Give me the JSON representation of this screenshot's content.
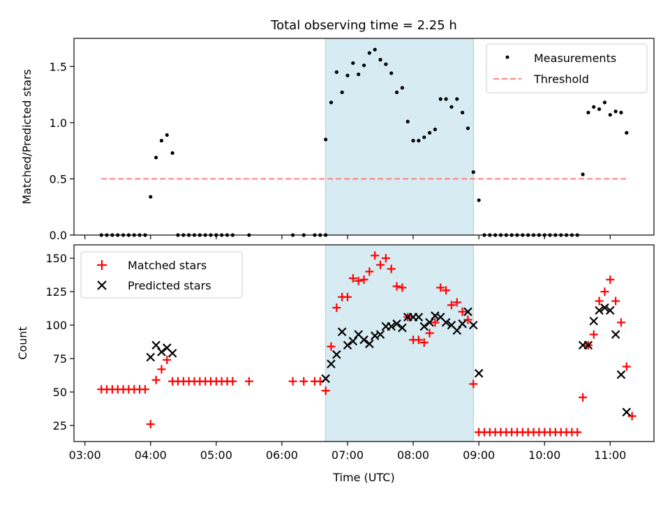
{
  "chart_data": [
    {
      "type": "scatter",
      "title": "Total observing time = 2.25 h",
      "xlabel": "",
      "ylabel": "Matched/Predicted stars",
      "xlim": [
        "02:50",
        "11:40"
      ],
      "ylim": [
        0,
        1.75
      ],
      "yticks": [
        "0.0",
        "0.5",
        "1.0",
        "1.5"
      ],
      "legend_position": "upper-right",
      "shaded_interval": [
        "06:40",
        "08:55"
      ],
      "series": [
        {
          "name": "Measurements",
          "marker": "dot",
          "color": "#000000",
          "points": [
            [
              "03:15",
              0
            ],
            [
              "03:20",
              0
            ],
            [
              "03:25",
              0
            ],
            [
              "03:30",
              0
            ],
            [
              "03:35",
              0
            ],
            [
              "03:40",
              0
            ],
            [
              "03:45",
              0
            ],
            [
              "03:50",
              0
            ],
            [
              "03:55",
              0
            ],
            [
              "04:00",
              0.34
            ],
            [
              "04:05",
              0.69
            ],
            [
              "04:10",
              0.84
            ],
            [
              "04:15",
              0.89
            ],
            [
              "04:20",
              0.73
            ],
            [
              "04:25",
              0
            ],
            [
              "04:30",
              0
            ],
            [
              "04:35",
              0
            ],
            [
              "04:40",
              0
            ],
            [
              "04:45",
              0
            ],
            [
              "04:50",
              0
            ],
            [
              "04:55",
              0
            ],
            [
              "05:00",
              0
            ],
            [
              "05:05",
              0
            ],
            [
              "05:10",
              0
            ],
            [
              "05:15",
              0
            ],
            [
              "05:30",
              0
            ],
            [
              "06:10",
              0
            ],
            [
              "06:20",
              0
            ],
            [
              "06:30",
              0
            ],
            [
              "06:35",
              0
            ],
            [
              "06:40",
              0
            ],
            [
              "06:40",
              0.85
            ],
            [
              "06:45",
              1.18
            ],
            [
              "06:50",
              1.45
            ],
            [
              "06:55",
              1.27
            ],
            [
              "07:00",
              1.42
            ],
            [
              "07:05",
              1.53
            ],
            [
              "07:10",
              1.43
            ],
            [
              "07:15",
              1.51
            ],
            [
              "07:20",
              1.62
            ],
            [
              "07:25",
              1.65
            ],
            [
              "07:30",
              1.56
            ],
            [
              "07:35",
              1.52
            ],
            [
              "07:40",
              1.44
            ],
            [
              "07:45",
              1.27
            ],
            [
              "07:50",
              1.31
            ],
            [
              "07:55",
              1.01
            ],
            [
              "08:00",
              0.84
            ],
            [
              "08:05",
              0.84
            ],
            [
              "08:10",
              0.87
            ],
            [
              "08:15",
              0.91
            ],
            [
              "08:20",
              0.94
            ],
            [
              "08:25",
              1.21
            ],
            [
              "08:30",
              1.21
            ],
            [
              "08:35",
              1.14
            ],
            [
              "08:40",
              1.21
            ],
            [
              "08:45",
              1.09
            ],
            [
              "08:50",
              0.95
            ],
            [
              "08:55",
              0.56
            ],
            [
              "09:00",
              0.31
            ],
            [
              "09:05",
              0
            ],
            [
              "09:10",
              0
            ],
            [
              "09:15",
              0
            ],
            [
              "09:20",
              0
            ],
            [
              "09:25",
              0
            ],
            [
              "09:30",
              0
            ],
            [
              "09:35",
              0
            ],
            [
              "09:40",
              0
            ],
            [
              "09:45",
              0
            ],
            [
              "09:50",
              0
            ],
            [
              "09:55",
              0
            ],
            [
              "10:00",
              0
            ],
            [
              "10:05",
              0
            ],
            [
              "10:10",
              0
            ],
            [
              "10:15",
              0
            ],
            [
              "10:20",
              0
            ],
            [
              "10:25",
              0
            ],
            [
              "10:30",
              0
            ],
            [
              "10:35",
              0.54
            ],
            [
              "10:40",
              1.09
            ],
            [
              "10:45",
              1.14
            ],
            [
              "10:50",
              1.12
            ],
            [
              "10:55",
              1.18
            ],
            [
              "11:00",
              1.07
            ],
            [
              "11:05",
              1.1
            ],
            [
              "11:10",
              1.09
            ],
            [
              "11:15",
              0.91
            ]
          ]
        },
        {
          "name": "Threshold",
          "marker": "dashed-line",
          "color": "#ff7f7f",
          "points": [
            [
              "03:15",
              0.5
            ],
            [
              "11:15",
              0.5
            ]
          ]
        }
      ]
    },
    {
      "type": "scatter",
      "title": "",
      "xlabel": "Time (UTC)",
      "ylabel": "Count",
      "xlim": [
        "02:50",
        "11:40"
      ],
      "ylim": [
        13,
        160
      ],
      "yticks": [
        "25",
        "50",
        "75",
        "100",
        "125",
        "150"
      ],
      "xticks": [
        "03:00",
        "04:00",
        "05:00",
        "06:00",
        "07:00",
        "08:00",
        "09:00",
        "10:00",
        "11:00"
      ],
      "legend_position": "upper-left",
      "shaded_interval": [
        "06:40",
        "08:55"
      ],
      "series": [
        {
          "name": "Matched stars",
          "marker": "plus",
          "color": "#ff0000",
          "points": [
            [
              "03:15",
              52
            ],
            [
              "03:20",
              52
            ],
            [
              "03:25",
              52
            ],
            [
              "03:30",
              52
            ],
            [
              "03:35",
              52
            ],
            [
              "03:40",
              52
            ],
            [
              "03:45",
              52
            ],
            [
              "03:50",
              52
            ],
            [
              "03:55",
              52
            ],
            [
              "04:00",
              26
            ],
            [
              "04:05",
              59
            ],
            [
              "04:10",
              67
            ],
            [
              "04:15",
              74
            ],
            [
              "04:20",
              58
            ],
            [
              "04:25",
              58
            ],
            [
              "04:30",
              58
            ],
            [
              "04:35",
              58
            ],
            [
              "04:40",
              58
            ],
            [
              "04:45",
              58
            ],
            [
              "04:50",
              58
            ],
            [
              "04:55",
              58
            ],
            [
              "05:00",
              58
            ],
            [
              "05:05",
              58
            ],
            [
              "05:10",
              58
            ],
            [
              "05:15",
              58
            ],
            [
              "05:30",
              58
            ],
            [
              "06:10",
              58
            ],
            [
              "06:20",
              58
            ],
            [
              "06:30",
              58
            ],
            [
              "06:35",
              58
            ],
            [
              "06:40",
              51
            ],
            [
              "06:45",
              84
            ],
            [
              "06:50",
              113
            ],
            [
              "06:55",
              121
            ],
            [
              "07:00",
              121
            ],
            [
              "07:05",
              135
            ],
            [
              "07:10",
              133
            ],
            [
              "07:15",
              134
            ],
            [
              "07:20",
              140
            ],
            [
              "07:25",
              152
            ],
            [
              "07:30",
              145
            ],
            [
              "07:35",
              150
            ],
            [
              "07:40",
              142
            ],
            [
              "07:45",
              129
            ],
            [
              "07:50",
              128
            ],
            [
              "07:55",
              106
            ],
            [
              "08:00",
              89
            ],
            [
              "08:05",
              89
            ],
            [
              "08:10",
              87
            ],
            [
              "08:15",
              94
            ],
            [
              "08:20",
              102
            ],
            [
              "08:25",
              128
            ],
            [
              "08:30",
              126
            ],
            [
              "08:35",
              115
            ],
            [
              "08:40",
              117
            ],
            [
              "08:45",
              110
            ],
            [
              "08:50",
              104
            ],
            [
              "08:55",
              56
            ],
            [
              "09:00",
              20
            ],
            [
              "09:05",
              20
            ],
            [
              "09:10",
              20
            ],
            [
              "09:15",
              20
            ],
            [
              "09:20",
              20
            ],
            [
              "09:25",
              20
            ],
            [
              "09:30",
              20
            ],
            [
              "09:35",
              20
            ],
            [
              "09:40",
              20
            ],
            [
              "09:45",
              20
            ],
            [
              "09:50",
              20
            ],
            [
              "09:55",
              20
            ],
            [
              "10:00",
              20
            ],
            [
              "10:05",
              20
            ],
            [
              "10:10",
              20
            ],
            [
              "10:15",
              20
            ],
            [
              "10:20",
              20
            ],
            [
              "10:25",
              20
            ],
            [
              "10:30",
              20
            ],
            [
              "10:35",
              46
            ],
            [
              "10:40",
              85
            ],
            [
              "10:45",
              93
            ],
            [
              "10:50",
              118
            ],
            [
              "10:55",
              125
            ],
            [
              "11:00",
              134
            ],
            [
              "11:05",
              118
            ],
            [
              "11:10",
              102
            ],
            [
              "11:15",
              69
            ],
            [
              "11:20",
              32
            ]
          ]
        },
        {
          "name": "Predicted stars",
          "marker": "x",
          "color": "#000000",
          "points": [
            [
              "04:00",
              76
            ],
            [
              "04:05",
              85
            ],
            [
              "04:10",
              80
            ],
            [
              "04:15",
              83
            ],
            [
              "04:20",
              79
            ],
            [
              "06:40",
              60
            ],
            [
              "06:45",
              71
            ],
            [
              "06:50",
              78
            ],
            [
              "06:55",
              95
            ],
            [
              "07:00",
              85
            ],
            [
              "07:05",
              88
            ],
            [
              "07:10",
              93
            ],
            [
              "07:15",
              89
            ],
            [
              "07:20",
              86
            ],
            [
              "07:25",
              92
            ],
            [
              "07:30",
              93
            ],
            [
              "07:35",
              99
            ],
            [
              "07:40",
              99
            ],
            [
              "07:45",
              101
            ],
            [
              "07:50",
              98
            ],
            [
              "07:55",
              106
            ],
            [
              "08:00",
              106
            ],
            [
              "08:05",
              106
            ],
            [
              "08:10",
              99
            ],
            [
              "08:15",
              102
            ],
            [
              "08:20",
              107
            ],
            [
              "08:25",
              106
            ],
            [
              "08:30",
              102
            ],
            [
              "08:35",
              100
            ],
            [
              "08:40",
              96
            ],
            [
              "08:45",
              101
            ],
            [
              "08:50",
              110
            ],
            [
              "08:55",
              100
            ],
            [
              "09:00",
              64
            ],
            [
              "10:35",
              85
            ],
            [
              "10:40",
              85
            ],
            [
              "10:45",
              103
            ],
            [
              "10:50",
              111
            ],
            [
              "10:55",
              113
            ],
            [
              "11:00",
              111
            ],
            [
              "11:05",
              93
            ],
            [
              "11:10",
              63
            ],
            [
              "11:15",
              35
            ]
          ]
        }
      ]
    }
  ]
}
